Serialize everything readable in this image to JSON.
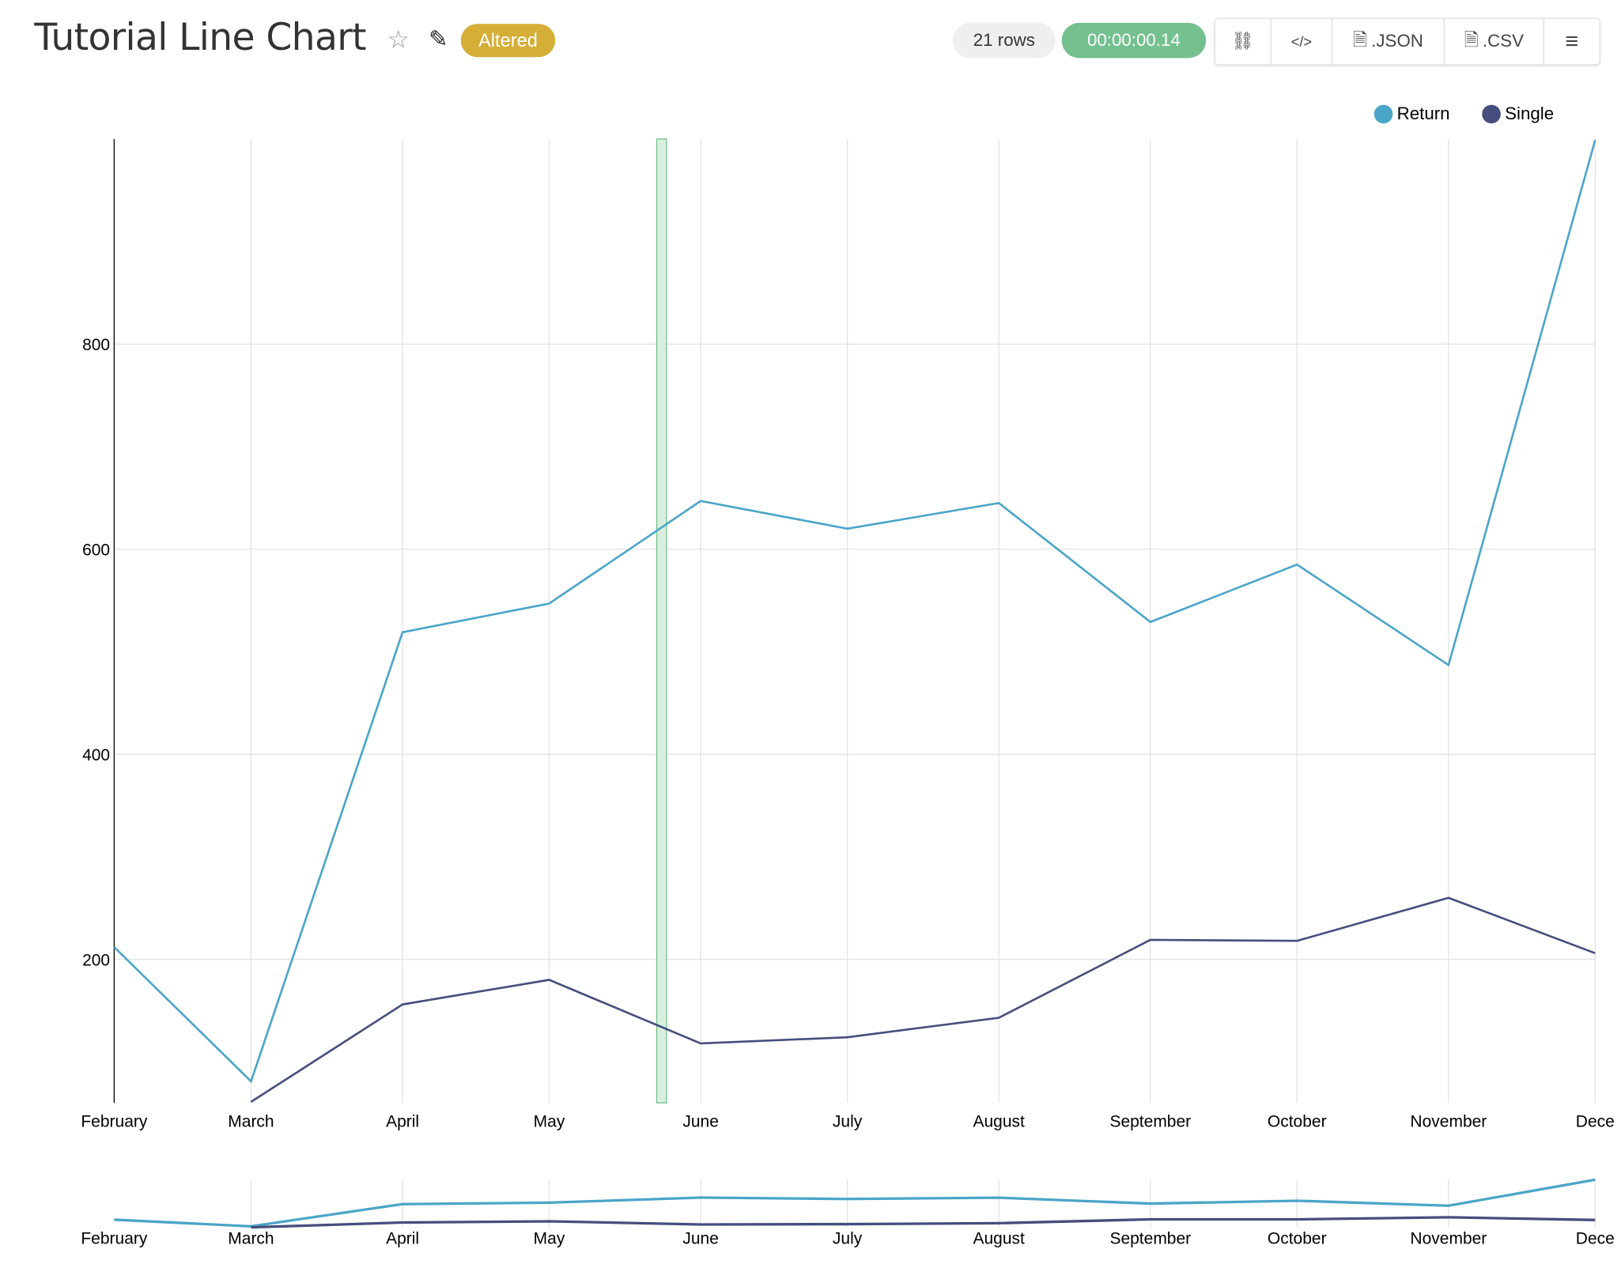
{
  "header": {
    "title": "Tutorial Line Chart",
    "badge": "Altered",
    "row_count": "21 rows",
    "timer": "00:00:00.14",
    "buttons": {
      "json": ".JSON",
      "csv": ".CSV"
    },
    "icons": [
      "star-icon",
      "edit-icon",
      "link-icon",
      "code-icon",
      "json-file-icon",
      "csv-file-icon",
      "menu-icon"
    ]
  },
  "colors": {
    "badge": "#d4ae37",
    "timer": "#75c08f",
    "return": "#4ba5c8",
    "single": "#454e7c",
    "brush": "#75c08f"
  },
  "chart_data": {
    "type": "line",
    "x": [
      "February",
      "March",
      "April",
      "May",
      "June",
      "July",
      "August",
      "September",
      "October",
      "November",
      "December"
    ],
    "x_tick_labels": [
      "February",
      "March",
      "April",
      "May",
      "June",
      "July",
      "August",
      "September",
      "October",
      "November",
      "Dece"
    ],
    "series": [
      {
        "name": "Return",
        "values": [
          212,
          81,
          519,
          547,
          647,
          620,
          645,
          529,
          585,
          487,
          999
        ]
      },
      {
        "name": "Single",
        "values": [
          null,
          61,
          156,
          180,
          118,
          124,
          143,
          219,
          218,
          260,
          206
        ]
      }
    ],
    "y_ticks": [
      200,
      400,
      600,
      800
    ],
    "ylim": [
      60,
      1000
    ],
    "grid": true,
    "legend": "top-right",
    "highlight_range": [
      "May 23",
      "May 25"
    ],
    "overview_chart": true
  }
}
